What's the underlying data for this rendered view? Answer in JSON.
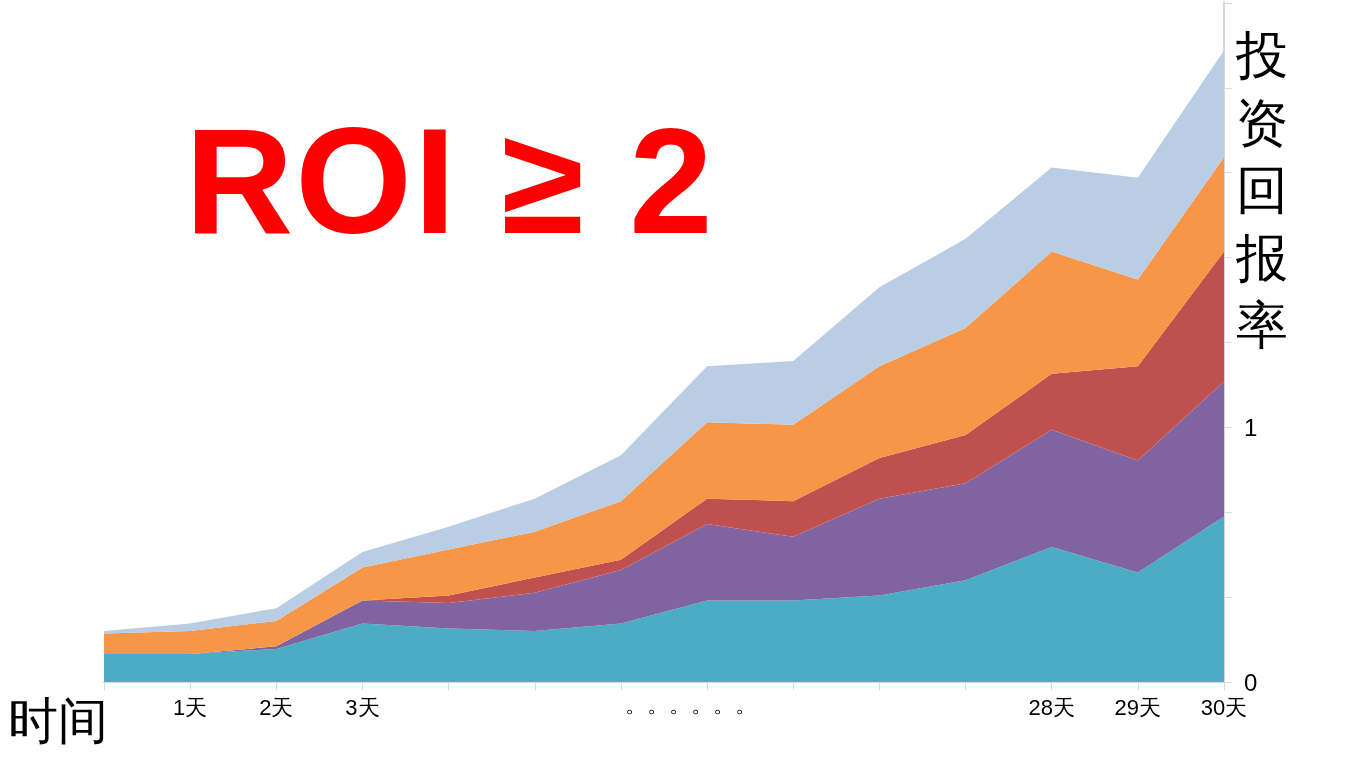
{
  "chart_data": {
    "type": "area",
    "title": "ROI ≥ 2",
    "xlabel": "时间",
    "ylabel": "投资回报率",
    "annotations": [
      "。。。。。。"
    ],
    "categories": [
      null,
      "1天",
      "2天",
      "3天",
      null,
      null,
      null,
      null,
      null,
      null,
      null,
      "28天",
      "29天",
      "30天"
    ],
    "stacked": true,
    "grid": false,
    "ylim": [
      0,
      2.67
    ],
    "yticks": [
      0,
      {
        "value": 0.333,
        "label": null
      },
      {
        "value": 0.667,
        "label": null
      },
      1,
      {
        "value": 1.333,
        "label": null
      },
      {
        "value": 1.667,
        "label": null
      },
      {
        "value": 2,
        "label": null
      },
      {
        "value": 2.333,
        "label": null
      },
      {
        "value": 2.667,
        "label": null
      }
    ],
    "series": [
      {
        "color": "#4bacc6",
        "values": [
          0.11,
          0.11,
          0.13,
          0.23,
          0.21,
          0.2,
          0.23,
          0.32,
          0.32,
          0.34,
          0.4,
          0.53,
          0.43,
          0.65
        ]
      },
      {
        "color": "#8064a2",
        "values": [
          0,
          0,
          0.01,
          0.09,
          0.1,
          0.15,
          0.21,
          0.3,
          0.25,
          0.38,
          0.38,
          0.46,
          0.44,
          0.53
        ]
      },
      {
        "color": "#c0504d",
        "values": [
          0,
          0,
          0,
          0,
          0.03,
          0.06,
          0.04,
          0.1,
          0.14,
          0.16,
          0.19,
          0.22,
          0.37,
          0.51
        ]
      },
      {
        "color": "#f79646",
        "values": [
          0.08,
          0.09,
          0.1,
          0.13,
          0.18,
          0.18,
          0.23,
          0.3,
          0.3,
          0.36,
          0.42,
          0.48,
          0.34,
          0.37
        ]
      },
      {
        "color": "#b9cde5",
        "values": [
          0.01,
          0.03,
          0.05,
          0.06,
          0.09,
          0.13,
          0.18,
          0.22,
          0.25,
          0.31,
          0.35,
          0.33,
          0.4,
          0.42
        ]
      }
    ]
  }
}
